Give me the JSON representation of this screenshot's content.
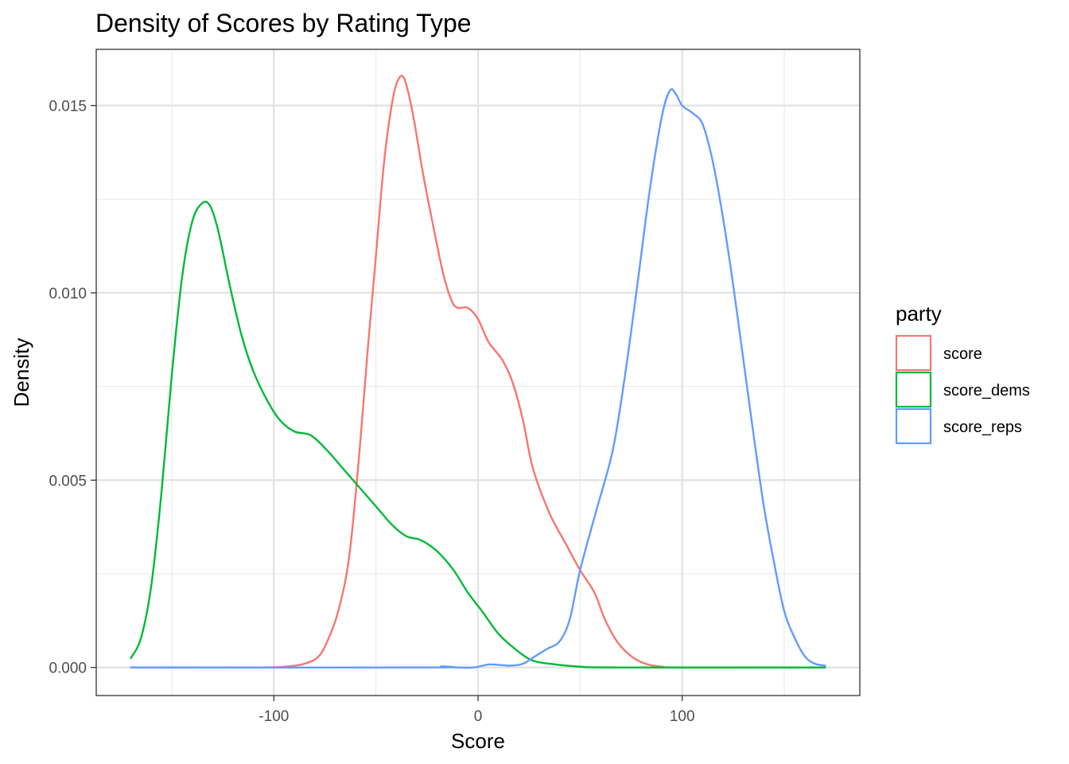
{
  "chart_data": {
    "type": "line",
    "title": "Density of Scores by Rating Type",
    "xlabel": "Score",
    "ylabel": "Density",
    "xlim": [
      -187,
      187
    ],
    "ylim": [
      -0.00075,
      0.0165
    ],
    "x_ticks": [
      -100,
      0,
      100
    ],
    "x_tick_labels": [
      "-100",
      "0",
      "100"
    ],
    "x_minor_ticks": [
      -150,
      -50,
      50,
      150
    ],
    "y_ticks": [
      0.0,
      0.005,
      0.01,
      0.015
    ],
    "y_tick_labels": [
      "0.000",
      "0.005",
      "0.010",
      "0.015"
    ],
    "y_minor_ticks": [
      0.0025,
      0.0075,
      0.0125
    ],
    "grid": true,
    "legend": {
      "title": "party",
      "position": "right"
    },
    "series": [
      {
        "name": "score",
        "color": "#F8766D",
        "points": [
          [
            -170,
            0.0
          ],
          [
            -110,
            0.0
          ],
          [
            -95,
            2e-05
          ],
          [
            -85,
            0.0001
          ],
          [
            -78,
            0.0003
          ],
          [
            -73,
            0.0008
          ],
          [
            -68,
            0.0016
          ],
          [
            -63,
            0.003
          ],
          [
            -58,
            0.0058
          ],
          [
            -54,
            0.0085
          ],
          [
            -50,
            0.011
          ],
          [
            -46,
            0.0135
          ],
          [
            -42,
            0.0151
          ],
          [
            -39,
            0.0157
          ],
          [
            -36,
            0.0157
          ],
          [
            -32,
            0.0148
          ],
          [
            -27,
            0.0132
          ],
          [
            -22,
            0.0118
          ],
          [
            -17,
            0.0105
          ],
          [
            -13,
            0.0098
          ],
          [
            -10,
            0.0096
          ],
          [
            -5,
            0.0096
          ],
          [
            0,
            0.0093
          ],
          [
            5,
            0.0087
          ],
          [
            12,
            0.0082
          ],
          [
            17,
            0.0076
          ],
          [
            22,
            0.0066
          ],
          [
            26,
            0.0055
          ],
          [
            30,
            0.0048
          ],
          [
            36,
            0.004
          ],
          [
            43,
            0.0033
          ],
          [
            50,
            0.0026
          ],
          [
            57,
            0.002
          ],
          [
            62,
            0.0013
          ],
          [
            68,
            0.0007
          ],
          [
            75,
            0.0003
          ],
          [
            82,
            0.0001
          ],
          [
            90,
            2e-05
          ],
          [
            100,
            0.0
          ],
          [
            170,
            0.0
          ]
        ]
      },
      {
        "name": "score_dems",
        "color": "#00BA38",
        "points": [
          [
            -170,
            0.00025
          ],
          [
            -165,
            0.0008
          ],
          [
            -160,
            0.0022
          ],
          [
            -155,
            0.0047
          ],
          [
            -150,
            0.0078
          ],
          [
            -145,
            0.0104
          ],
          [
            -140,
            0.0119
          ],
          [
            -135,
            0.0124
          ],
          [
            -131,
            0.0123
          ],
          [
            -127,
            0.0116
          ],
          [
            -122,
            0.0103
          ],
          [
            -116,
            0.0089
          ],
          [
            -110,
            0.0079
          ],
          [
            -103,
            0.0071
          ],
          [
            -97,
            0.0066
          ],
          [
            -90,
            0.0063
          ],
          [
            -82,
            0.0062
          ],
          [
            -74,
            0.0058
          ],
          [
            -66,
            0.0053
          ],
          [
            -58,
            0.0048
          ],
          [
            -50,
            0.0043
          ],
          [
            -42,
            0.0038
          ],
          [
            -35,
            0.0035
          ],
          [
            -28,
            0.0034
          ],
          [
            -20,
            0.0031
          ],
          [
            -12,
            0.0026
          ],
          [
            -5,
            0.002
          ],
          [
            2,
            0.0015
          ],
          [
            10,
            0.0009
          ],
          [
            18,
            0.0005
          ],
          [
            26,
            0.0002
          ],
          [
            35,
            0.0001
          ],
          [
            50,
            2e-05
          ],
          [
            70,
            0.0
          ],
          [
            170,
            0.0
          ]
        ]
      },
      {
        "name": "score_reps",
        "color": "#619CFF",
        "points": [
          [
            -170,
            0.0
          ],
          [
            -25,
            0.0
          ],
          [
            -18,
            3e-05
          ],
          [
            -10,
            0.0
          ],
          [
            -2,
            0.0
          ],
          [
            5,
            8e-05
          ],
          [
            10,
            7e-05
          ],
          [
            16,
            5e-05
          ],
          [
            22,
            0.0001
          ],
          [
            28,
            0.0003
          ],
          [
            34,
            0.0005
          ],
          [
            40,
            0.0007
          ],
          [
            45,
            0.0013
          ],
          [
            50,
            0.0026
          ],
          [
            58,
            0.0042
          ],
          [
            66,
            0.0058
          ],
          [
            72,
            0.0078
          ],
          [
            78,
            0.0102
          ],
          [
            84,
            0.0127
          ],
          [
            90,
            0.0147
          ],
          [
            94,
            0.0154
          ],
          [
            97,
            0.0153
          ],
          [
            100,
            0.015
          ],
          [
            105,
            0.0148
          ],
          [
            110,
            0.0145
          ],
          [
            115,
            0.0135
          ],
          [
            120,
            0.012
          ],
          [
            125,
            0.0102
          ],
          [
            130,
            0.0082
          ],
          [
            135,
            0.0062
          ],
          [
            140,
            0.0043
          ],
          [
            145,
            0.0028
          ],
          [
            150,
            0.0015
          ],
          [
            155,
            0.0008
          ],
          [
            160,
            0.0003
          ],
          [
            165,
            0.0001
          ],
          [
            170,
            5e-05
          ]
        ]
      }
    ]
  }
}
